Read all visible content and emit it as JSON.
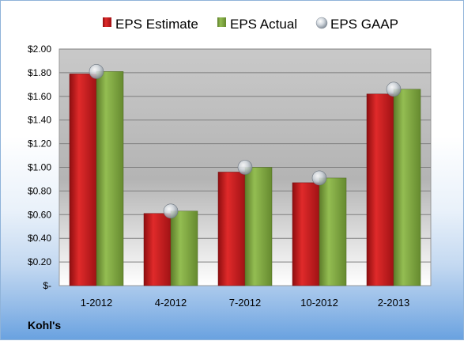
{
  "footer": {
    "company": "Kohl's"
  },
  "colors": {
    "estimate": "#c0181c",
    "actual": "#7aa03c",
    "gaap": "#b9c3cc"
  },
  "chart_data": {
    "type": "bar",
    "categories": [
      "1-2012",
      "4-2012",
      "7-2012",
      "10-2012",
      "2-2013"
    ],
    "series": [
      {
        "name": "EPS Estimate",
        "values": [
          1.79,
          0.61,
          0.96,
          0.87,
          1.62
        ],
        "marker": "bar"
      },
      {
        "name": "EPS Actual",
        "values": [
          1.81,
          0.63,
          1.0,
          0.91,
          1.66
        ],
        "marker": "bar"
      },
      {
        "name": "EPS GAAP",
        "values": [
          1.81,
          0.63,
          1.0,
          0.91,
          1.66
        ],
        "marker": "circle"
      }
    ],
    "ylim": [
      0,
      2.0
    ],
    "yticks": [
      0,
      0.2,
      0.4,
      0.6,
      0.8,
      1.0,
      1.2,
      1.4,
      1.6,
      1.8,
      2.0
    ],
    "ytick_labels": [
      "$-",
      "$0.20",
      "$0.40",
      "$0.60",
      "$0.80",
      "$1.00",
      "$1.20",
      "$1.40",
      "$1.60",
      "$1.80",
      "$2.00"
    ],
    "legend_position": "top",
    "grid": true,
    "title": "",
    "xlabel": "",
    "ylabel": ""
  }
}
